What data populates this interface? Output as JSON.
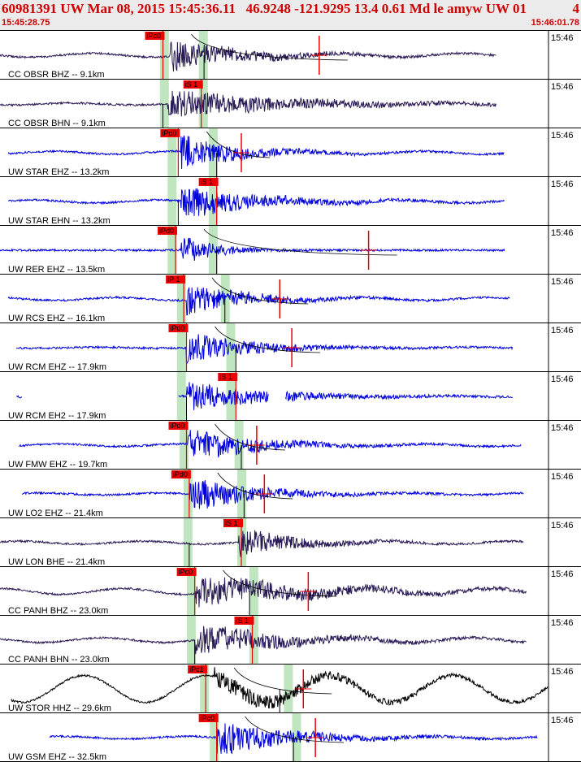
{
  "header": {
    "title": "60981391 UW Mar 08, 2015 15:45:36.11   46.9248 -121.9295 13.4 0.61 Md le amyw UW 01",
    "page_num": "4",
    "start_time": "15:45:28.75",
    "end_time": "15:46:01.78"
  },
  "chart_data": {
    "type": "seismogram",
    "time_range": [
      "15:45:28.75",
      "15:46:01.78"
    ],
    "trace_color_default": "#0000dd",
    "pick_color": "#ee0000",
    "window_color": "#bfe6bf",
    "traces": [
      {
        "label": "CC OBSR BHZ -- 9.1km",
        "tick": "15:46",
        "color": "#2a1a55",
        "pick": "iPc0",
        "pick_t": 0.297,
        "pick_ch": "ch0",
        "pick_flag": "top",
        "arr_t": 0.372,
        "amp": 0.32,
        "onset": 0.31,
        "end": 0.905,
        "decay": 0.12,
        "env": 0.08,
        "start": 0.0,
        "win": [
          0.299,
          0.37
        ],
        "curve": true,
        "mark_t": 0.582
      },
      {
        "label": "CC OBSR BHN -- 9.1km",
        "tick": "15:46",
        "color": "#2a1a55",
        "pick": "iS 1",
        "pick_t": 0.367,
        "pick_ch": "ch1",
        "pick_flag": "top",
        "arr_t": 0.297,
        "amp": 0.3,
        "onset": 0.305,
        "end": 0.905,
        "decay": 0.2,
        "env": 0.04,
        "start": 0.0,
        "win": [
          0.299,
          0.37
        ]
      },
      {
        "label": "UW STAR EHZ -- 13.2km",
        "tick": "15:46",
        "color": "#0000dd",
        "pick": "iPd0",
        "pick_t": 0.325,
        "pick_ch": "ch2",
        "pick_flag": "top",
        "arr_t": 0.395,
        "amp": 0.35,
        "onset": 0.33,
        "end": 0.92,
        "decay": 0.1,
        "env": 0.06,
        "start": 0.015,
        "win": [
          0.313,
          0.388
        ],
        "curve": true,
        "mark_t": 0.44
      },
      {
        "label": "UW STAR EHN -- 13.2km",
        "tick": "15:46",
        "color": "#0000dd",
        "pick": "iS 1",
        "pick_t": 0.395,
        "pick_ch": "ch3",
        "pick_flag": "top",
        "arr_t": 0.325,
        "amp": 0.34,
        "onset": 0.33,
        "end": 0.92,
        "decay": 0.13,
        "env": 0.06,
        "start": 0.015,
        "win": [
          0.313,
          0.388
        ]
      },
      {
        "label": "UW RER EHZ -- 13.5km",
        "tick": "15:46",
        "color": "#0000dd",
        "pick": "iPd0",
        "pick_t": 0.32,
        "pick_ch": "ch4",
        "pick_flag": "top",
        "arr_t": 0.395,
        "amp": 0.3,
        "onset": 0.33,
        "end": 0.92,
        "decay": 0.06,
        "env": 0.0,
        "start": 0.0,
        "win": [
          0.313,
          0.388
        ],
        "curve": true,
        "mark_t": 0.672
      },
      {
        "label": "UW RCS EHZ -- 16.1km",
        "tick": "15:46",
        "color": "#0000dd",
        "pick": "iP 1",
        "pick_t": 0.335,
        "pick_ch": "ch5",
        "pick_flag": "top",
        "arr_t": 0.41,
        "amp": 0.33,
        "onset": 0.34,
        "end": 0.93,
        "decay": 0.1,
        "env": 0.06,
        "start": 0.015,
        "win": [
          0.33,
          0.41
        ],
        "curve": true,
        "mark_t": 0.51
      },
      {
        "label": "UW RCM EHZ -- 17.9km",
        "tick": "15:46",
        "color": "#0000dd",
        "pick": "iPd0",
        "pick_t": 0.34,
        "pick_ch": "ch6",
        "pick_flag": "top",
        "arr_t": 0.43,
        "amp": 0.32,
        "onset": 0.34,
        "end": 0.935,
        "decay": 0.11,
        "env": 0.02,
        "start": 0.03,
        "win": [
          0.33,
          0.42
        ],
        "curve": true,
        "mark_t": 0.532
      },
      {
        "label": "UW RCM EH2 -- 17.9km",
        "tick": "15:46",
        "color": "#0000dd",
        "pick": "iS 1",
        "pick_t": 0.43,
        "pick_ch": "ch7",
        "pick_flag": "top",
        "arr_t": 0.34,
        "amp": 0.3,
        "onset": 0.34,
        "end": 0.935,
        "decay": 0.14,
        "env": 0.02,
        "start": 0.03,
        "win": [
          0.33,
          0.42
        ],
        "gaps": [
          [
            0.04,
            0.325
          ],
          [
            0.49,
            0.52
          ]
        ]
      },
      {
        "label": "UW FMW EHZ -- 19.7km",
        "tick": "15:46",
        "color": "#0000dd",
        "pick": "iPd0",
        "pick_t": 0.34,
        "pick_ch": "ch8",
        "pick_flag": "top",
        "arr_t": 0.44,
        "amp": 0.36,
        "onset": 0.342,
        "end": 0.95,
        "decay": 0.11,
        "env": 0.05,
        "start": 0.035,
        "win": [
          0.335,
          0.435
        ],
        "curve": true,
        "mark_t": 0.468
      },
      {
        "label": "UW LO2 EHZ -- 21.4km",
        "tick": "15:46",
        "color": "#0000dd",
        "pick": "iPd0",
        "pick_t": 0.345,
        "pick_ch": "ch9",
        "pick_flag": "top",
        "arr_t": 0.445,
        "amp": 0.36,
        "onset": 0.345,
        "end": 0.955,
        "decay": 0.11,
        "env": 0.04,
        "start": 0.04,
        "win": [
          0.342,
          0.44
        ],
        "curve": true,
        "mark_t": 0.482
      },
      {
        "label": "UW LON BHE -- 21.4km",
        "tick": "15:46",
        "color": "#2a1a55",
        "pick": "iS 1",
        "pick_t": 0.44,
        "pick_ch": "ch10",
        "pick_flag": "bottom",
        "arr_t": 0.345,
        "amp": 0.3,
        "onset": 0.435,
        "end": 0.955,
        "decay": 0.1,
        "env": 0.06,
        "start": 0.0,
        "win": [
          0.342,
          0.44
        ]
      },
      {
        "label": "CC PANH BHZ -- 23.0km",
        "tick": "15:46",
        "color": "#2a1a55",
        "pick": "iPc0",
        "pick_t": 0.355,
        "pick_ch": "ch11",
        "pick_flag": "top",
        "arr_t": 0.455,
        "amp": 0.32,
        "onset": 0.355,
        "end": 0.96,
        "decay": 0.2,
        "env": 0.12,
        "start": 0.0,
        "win": [
          0.348,
          0.462
        ],
        "curve": true,
        "mark_t": 0.562
      },
      {
        "label": "CC PANH BHN -- 23.0km",
        "tick": "15:46",
        "color": "#2a1a55",
        "pick": "iS 1",
        "pick_t": 0.46,
        "pick_ch": "ch12",
        "pick_flag": "top",
        "arr_t": 0.355,
        "amp": 0.33,
        "onset": 0.355,
        "end": 0.96,
        "decay": 0.15,
        "env": 0.1,
        "start": 0.0,
        "win": [
          0.348,
          0.462
        ]
      },
      {
        "label": "UW STOR HHZ -- 29.6km",
        "tick": "15:46",
        "color": "#000000",
        "pick": "iPc1",
        "pick_t": 0.375,
        "pick_ch": "ch13",
        "pick_flag": "top",
        "arr_t": 0.51,
        "amp": 0.2,
        "onset": 0.39,
        "end": 1.0,
        "decay": 0.2,
        "env": 0.55,
        "start": 0.02,
        "win": [
          0.372,
          0.525
        ],
        "curve": true,
        "mark_t": 0.553
      },
      {
        "label": "UW GSM EHZ -- 32.5km",
        "tick": "15:46",
        "color": "#0000dd",
        "pick": "iPc0",
        "pick_t": 0.395,
        "pick_ch": "ch14",
        "pick_flag": "top",
        "arr_t": 0.535,
        "amp": 0.36,
        "onset": 0.395,
        "end": 0.98,
        "decay": 0.13,
        "env": 0.05,
        "start": 0.09,
        "win": [
          0.39,
          0.54
        ],
        "curve": true,
        "mark_t": 0.575
      }
    ]
  }
}
